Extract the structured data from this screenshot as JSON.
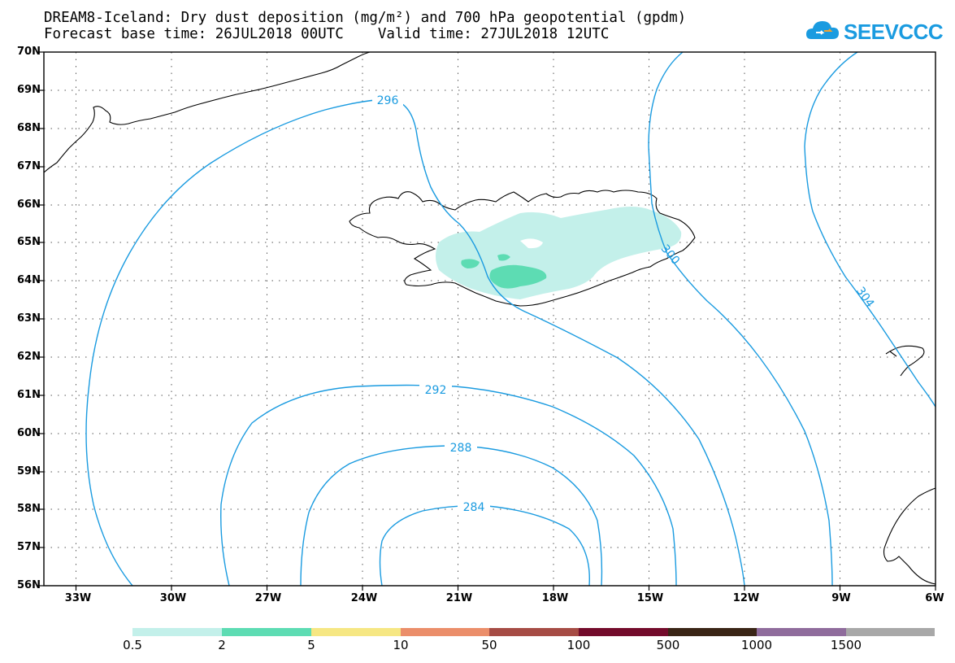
{
  "title": {
    "line1": "DREAM8-Iceland: Dry dust deposition (mg/m²) and 700 hPa geopotential (gpdm)",
    "line2": "Forecast base time: 26JUL2018 00UTC    Valid time: 27JUL2018 12UTC"
  },
  "logo": {
    "text": "SEEVCCC",
    "color": "#1a9be0",
    "icon": "cloud-icon"
  },
  "map": {
    "lon_range": [
      -34,
      -6
    ],
    "lat_range": [
      56,
      70
    ],
    "lat_labels": [
      "70N",
      "69N",
      "68N",
      "67N",
      "66N",
      "65N",
      "64N",
      "63N",
      "62N",
      "61N",
      "60N",
      "59N",
      "58N",
      "57N",
      "56N"
    ],
    "lon_labels": [
      "33W",
      "30W",
      "27W",
      "24W",
      "21W",
      "18W",
      "15W",
      "12W",
      "9W",
      "6W"
    ],
    "gridlines": "dotted",
    "contour_color": "#1a9be0",
    "contour_labels": [
      "296",
      "292",
      "288",
      "284",
      "300",
      "304"
    ]
  },
  "colorbar": {
    "labels": [
      "0.5",
      "2",
      "5",
      "10",
      "50",
      "100",
      "500",
      "1000",
      "1500"
    ],
    "colors": [
      "#c3f0ea",
      "#5ddcb3",
      "#f6e783",
      "#eb8e6a",
      "#a64c45",
      "#730b2b",
      "#3a2516",
      "#8f6c9c",
      "#a8a8a8"
    ]
  }
}
